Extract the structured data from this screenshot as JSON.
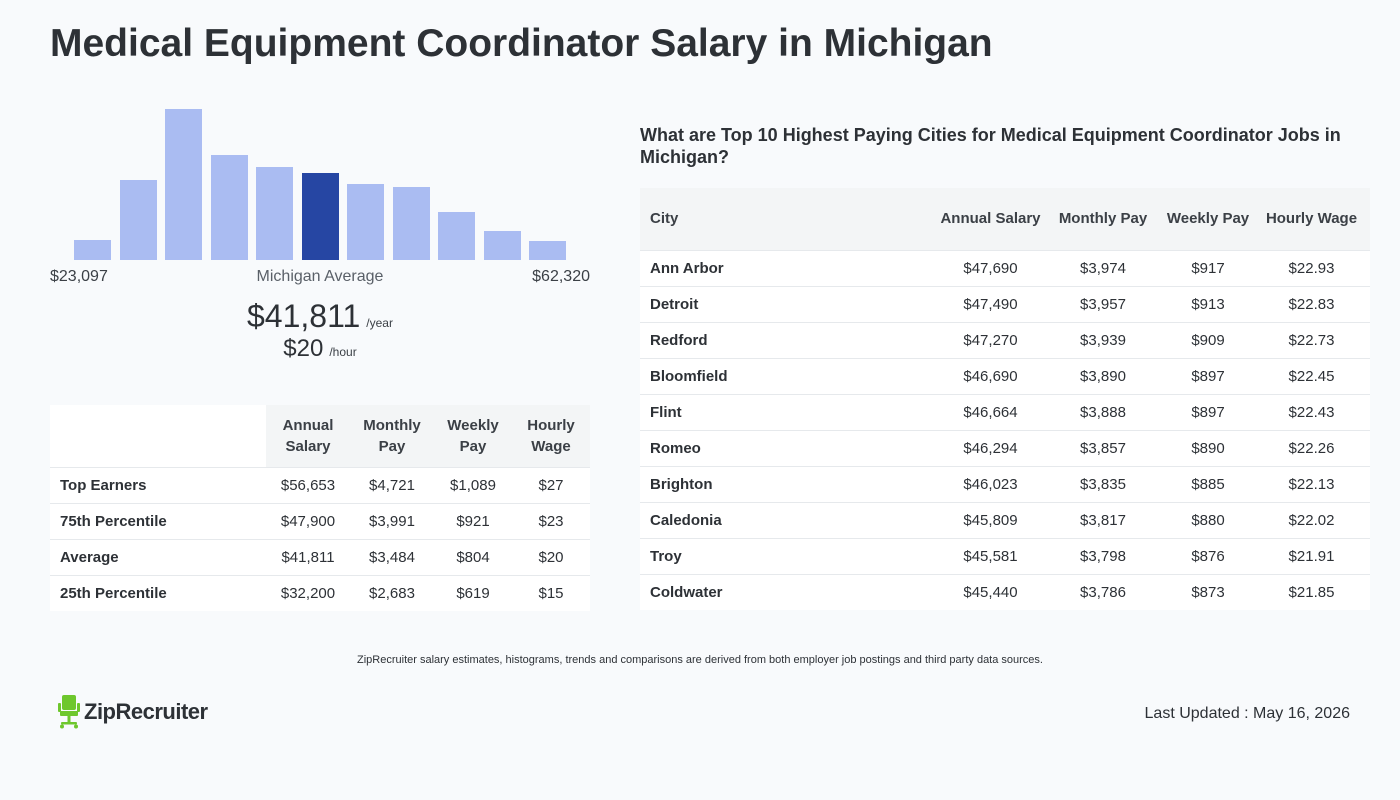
{
  "page_title": "Medical Equipment Coordinator Salary in Michigan",
  "histogram": {
    "heights_pct": [
      12,
      47,
      89,
      62,
      55,
      51,
      45,
      43,
      28,
      17,
      11
    ],
    "active_index": 5,
    "min_label": "$23,097",
    "avg_label": "Michigan Average",
    "max_label": "$62,320",
    "bar_color": "#aabcf2",
    "active_color": "#2646a3"
  },
  "average": {
    "annual": "$41,811",
    "annual_unit": "/year",
    "hourly": "$20",
    "hourly_unit": "/hour"
  },
  "percentile_table": {
    "headers": [
      "",
      "Annual Salary",
      "Monthly Pay",
      "Weekly Pay",
      "Hourly Wage"
    ],
    "rows": [
      [
        "Top Earners",
        "$56,653",
        "$4,721",
        "$1,089",
        "$27"
      ],
      [
        "75th Percentile",
        "$47,900",
        "$3,991",
        "$921",
        "$23"
      ],
      [
        "Average",
        "$41,811",
        "$3,484",
        "$804",
        "$20"
      ],
      [
        "25th Percentile",
        "$32,200",
        "$2,683",
        "$619",
        "$15"
      ]
    ]
  },
  "cities": {
    "title": "What are Top 10 Highest Paying Cities for Medical Equipment Coordinator Jobs in Michigan?",
    "headers": [
      "City",
      "Annual Salary",
      "Monthly Pay",
      "Weekly Pay",
      "Hourly Wage"
    ],
    "rows": [
      [
        "Ann Arbor",
        "$47,690",
        "$3,974",
        "$917",
        "$22.93"
      ],
      [
        "Detroit",
        "$47,490",
        "$3,957",
        "$913",
        "$22.83"
      ],
      [
        "Redford",
        "$47,270",
        "$3,939",
        "$909",
        "$22.73"
      ],
      [
        "Bloomfield",
        "$46,690",
        "$3,890",
        "$897",
        "$22.45"
      ],
      [
        "Flint",
        "$46,664",
        "$3,888",
        "$897",
        "$22.43"
      ],
      [
        "Romeo",
        "$46,294",
        "$3,857",
        "$890",
        "$22.26"
      ],
      [
        "Brighton",
        "$46,023",
        "$3,835",
        "$885",
        "$22.13"
      ],
      [
        "Caledonia",
        "$45,809",
        "$3,817",
        "$880",
        "$22.02"
      ],
      [
        "Troy",
        "$45,581",
        "$3,798",
        "$876",
        "$21.91"
      ],
      [
        "Coldwater",
        "$45,440",
        "$3,786",
        "$873",
        "$21.85"
      ]
    ]
  },
  "disclaimer": "ZipRecruiter salary estimates, histograms, trends and comparisons are derived from both employer job postings and third party data sources.",
  "logo": {
    "text": "ZipRecruiter",
    "icon": "chair-icon",
    "color": "#6ec72d"
  },
  "last_updated": "Last Updated : May 16, 2026"
}
